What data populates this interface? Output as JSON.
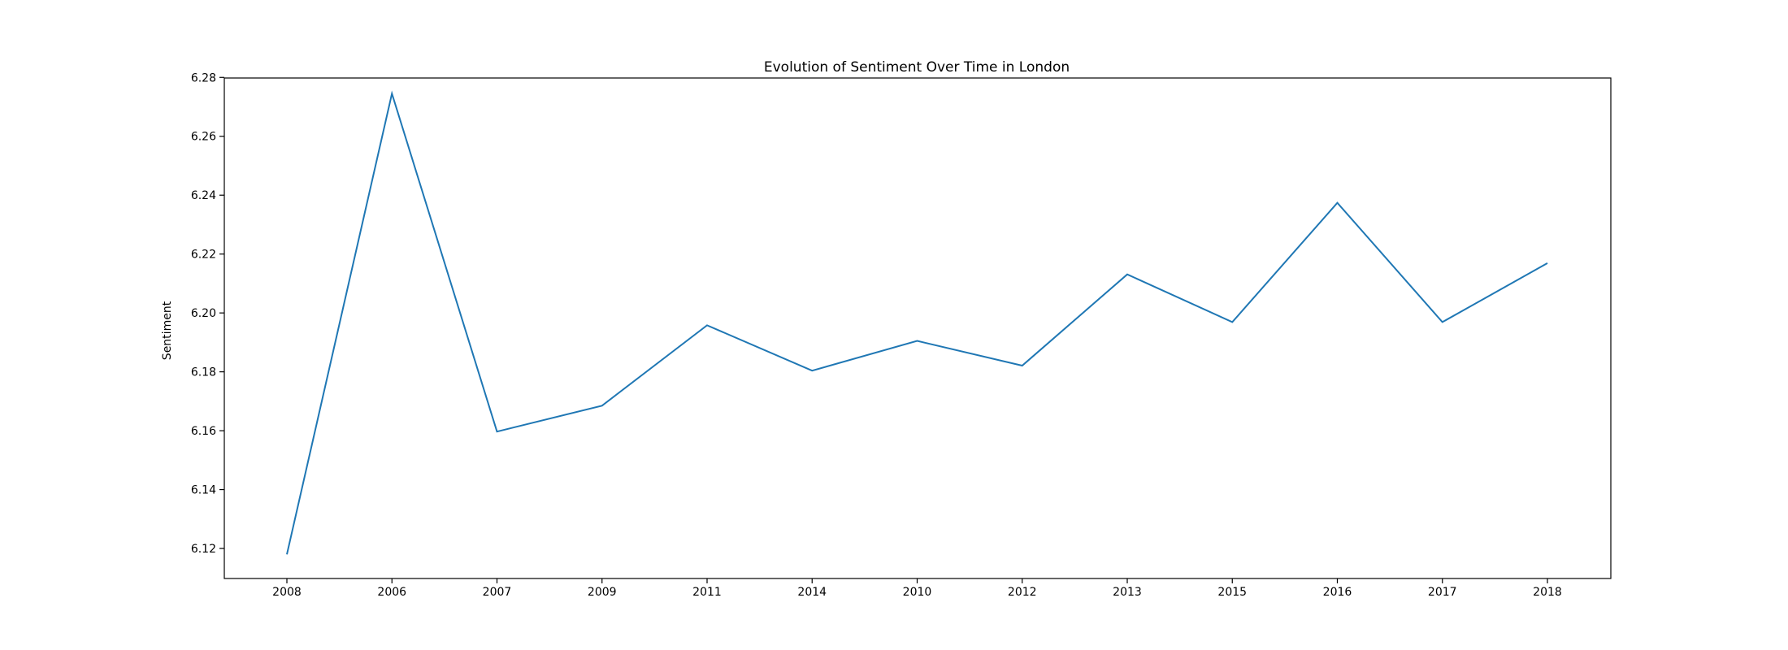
{
  "chart_data": {
    "type": "line",
    "title": "Evolution of Sentiment Over Time in London",
    "xlabel": "",
    "ylabel": "Sentiment",
    "categories": [
      "2008",
      "2006",
      "2007",
      "2009",
      "2011",
      "2014",
      "2010",
      "2012",
      "2013",
      "2015",
      "2016",
      "2017",
      "2018"
    ],
    "series": [
      {
        "values": [
          6.118,
          6.2745,
          6.1597,
          6.1685,
          6.1958,
          6.1804,
          6.1905,
          6.1821,
          6.2131,
          6.1969,
          6.2374,
          6.1969,
          6.2169
        ]
      }
    ],
    "ylim": [
      6.1098,
      6.2798
    ],
    "yticks": [
      6.12,
      6.14,
      6.16,
      6.18,
      6.2,
      6.22,
      6.24,
      6.26,
      6.28
    ],
    "ytick_labels": [
      "6.12",
      "6.14",
      "6.16",
      "6.18",
      "6.20",
      "6.22",
      "6.24",
      "6.26",
      "6.28"
    ],
    "grid": false,
    "legend": "none",
    "line_color": "#1f77b4"
  }
}
